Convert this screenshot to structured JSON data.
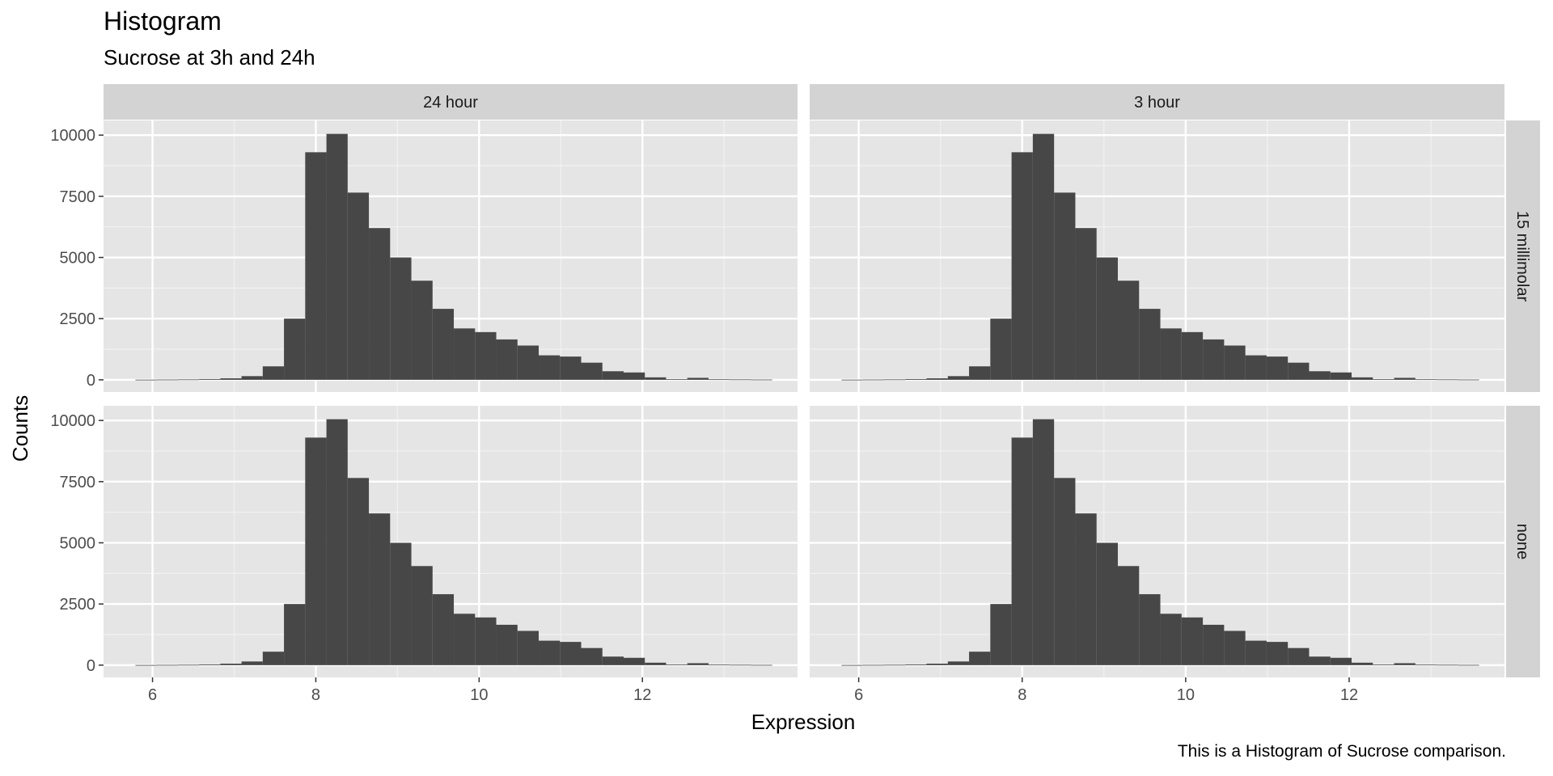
{
  "title": "Histogram",
  "subtitle": "Sucrose at 3h and 24h",
  "caption": "This is a Histogram of Sucrose comparison.",
  "chart_data": {
    "type": "bar",
    "subtype": "faceted histogram",
    "xlabel": "Expression",
    "ylabel": "Counts",
    "xlim": [
      5.4,
      13.9
    ],
    "ylim": [
      -500,
      10600
    ],
    "x_ticks": [
      6,
      8,
      10,
      12
    ],
    "y_ticks": [
      0,
      2500,
      5000,
      7500,
      10000
    ],
    "x_tick_labels": [
      "6",
      "8",
      "10",
      "12"
    ],
    "y_tick_labels": [
      "0",
      "2500",
      "5000",
      "7500",
      "10000"
    ],
    "col_facets": [
      "24 hour",
      "3 hour"
    ],
    "row_facets": [
      "15 millimolar",
      "none"
    ],
    "bin_width": 0.26,
    "bin_starts": [
      5.79,
      6.05,
      6.31,
      6.57,
      6.83,
      7.09,
      7.35,
      7.61,
      7.87,
      8.13,
      8.39,
      8.65,
      8.91,
      9.17,
      9.43,
      9.69,
      9.95,
      10.21,
      10.47,
      10.73,
      10.99,
      11.25,
      11.51,
      11.77,
      12.03,
      12.29,
      12.55,
      12.81,
      13.07,
      13.33
    ],
    "panels": [
      {
        "col": "24 hour",
        "row": "15 millimolar",
        "counts": [
          5,
          10,
          15,
          30,
          60,
          150,
          550,
          2500,
          9300,
          10050,
          7650,
          6200,
          5000,
          4050,
          2900,
          2100,
          1950,
          1650,
          1400,
          1000,
          950,
          700,
          350,
          300,
          100,
          25,
          80,
          20,
          15,
          10
        ]
      },
      {
        "col": "3 hour",
        "row": "15 millimolar",
        "counts": [
          5,
          10,
          15,
          30,
          60,
          150,
          550,
          2500,
          9300,
          10050,
          7650,
          6200,
          5000,
          4050,
          2900,
          2100,
          1950,
          1650,
          1400,
          1000,
          950,
          700,
          350,
          300,
          100,
          25,
          80,
          20,
          15,
          10
        ]
      },
      {
        "col": "24 hour",
        "row": "none",
        "counts": [
          5,
          10,
          15,
          30,
          60,
          150,
          550,
          2500,
          9300,
          10050,
          7650,
          6200,
          5000,
          4050,
          2900,
          2100,
          1950,
          1650,
          1400,
          1000,
          950,
          700,
          350,
          300,
          100,
          25,
          80,
          20,
          15,
          10
        ]
      },
      {
        "col": "3 hour",
        "row": "none",
        "counts": [
          5,
          10,
          15,
          30,
          60,
          150,
          550,
          2500,
          9300,
          10050,
          7650,
          6200,
          5000,
          4050,
          2900,
          2100,
          1950,
          1650,
          1400,
          1000,
          950,
          700,
          350,
          300,
          100,
          25,
          80,
          20,
          15,
          10
        ]
      }
    ],
    "colors": {
      "bar": "#474747",
      "panel_bg": "#e5e5e5",
      "strip_bg": "#d3d3d3",
      "grid_major": "#ffffff",
      "grid_minor": "#f2f2f2"
    }
  }
}
